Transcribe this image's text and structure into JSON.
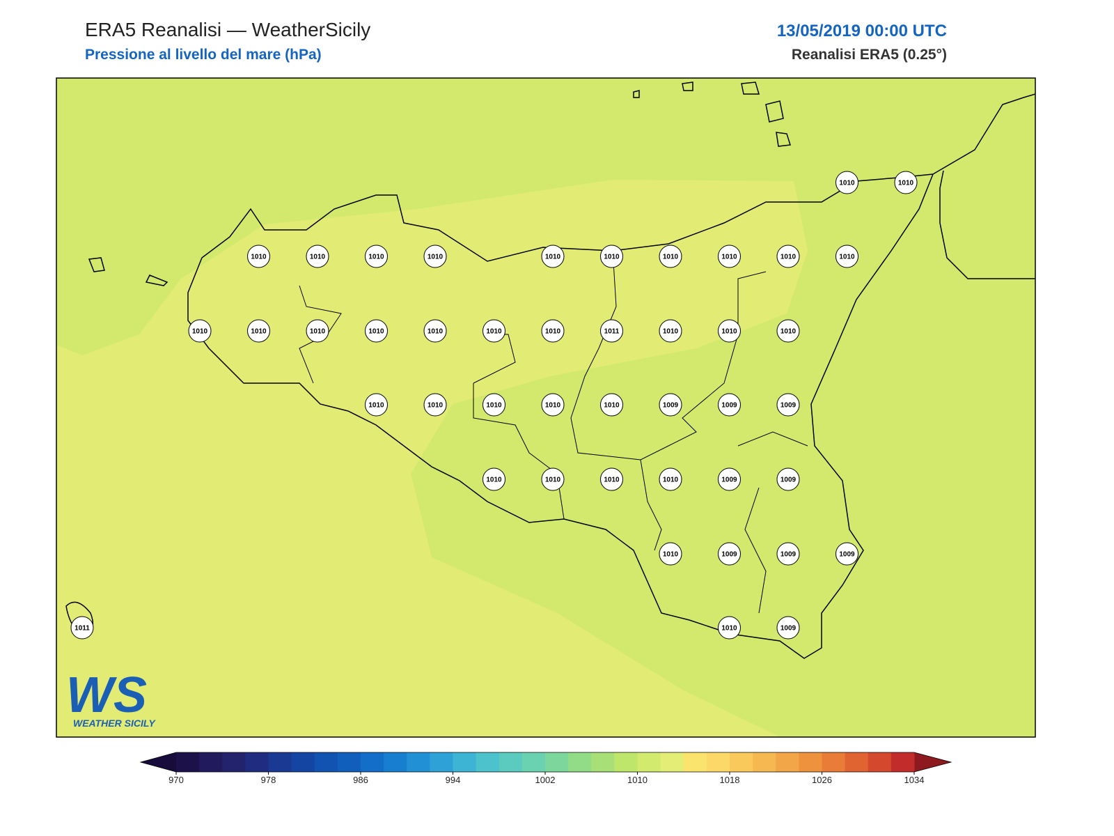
{
  "header": {
    "title": "ERA5 Reanalisi — WeatherSicily",
    "subtitle": "Pressione al livello del mare (hPa)",
    "date": "13/05/2019 00:00 UTC",
    "source": "Reanalisi ERA5 (0.25°)"
  },
  "logo": {
    "mark": "WS",
    "name": "WEATHER SICILY"
  },
  "stations": {
    "rows": [
      [
        null,
        null,
        null,
        null,
        null,
        null,
        null,
        null,
        null,
        null,
        null,
        null,
        null,
        1010,
        1010
      ],
      [
        null,
        null,
        null,
        1010,
        1010,
        1010,
        1010,
        null,
        1010,
        1010,
        1010,
        1010,
        1010,
        1010,
        null
      ],
      [
        null,
        null,
        1010,
        1010,
        1010,
        1010,
        1010,
        1010,
        1010,
        1011,
        1010,
        1010,
        1010,
        null,
        null
      ],
      [
        null,
        null,
        null,
        null,
        null,
        1010,
        1010,
        1010,
        1010,
        1010,
        1009,
        1009,
        1009,
        null,
        null
      ],
      [
        null,
        null,
        null,
        null,
        null,
        null,
        null,
        1010,
        1010,
        1010,
        1010,
        1009,
        1009,
        null,
        null
      ],
      [
        null,
        null,
        null,
        null,
        null,
        null,
        null,
        null,
        null,
        null,
        1010,
        1009,
        1009,
        1009,
        null
      ],
      [
        1011,
        null,
        null,
        null,
        null,
        null,
        null,
        null,
        null,
        null,
        null,
        1010,
        1009,
        null,
        null
      ]
    ]
  },
  "colorbar": {
    "lim": [
      970,
      1034
    ],
    "ticks": [
      970,
      978,
      986,
      994,
      1002,
      1010,
      1018,
      1026,
      1034
    ],
    "colors": [
      "#1d1149",
      "#211a5c",
      "#23226c",
      "#1f2c80",
      "#1a3992",
      "#1545a3",
      "#1252b1",
      "#115fbd",
      "#126ec8",
      "#187fd0",
      "#2190d4",
      "#2ea2d6",
      "#3db4d3",
      "#4cc2cc",
      "#5bcbc0",
      "#6ad2b0",
      "#7dd79c",
      "#92dc88",
      "#a8e077",
      "#bde66b",
      "#d2eb6e",
      "#e4ed76",
      "#fbe46e",
      "#fcd868",
      "#f9c95c",
      "#f6b952",
      "#f2a647",
      "#ee923e",
      "#e97c37",
      "#e06432",
      "#d4482e",
      "#c22c2b"
    ],
    "under_color": "#170c3c",
    "over_color": "#8c1a1f"
  }
}
